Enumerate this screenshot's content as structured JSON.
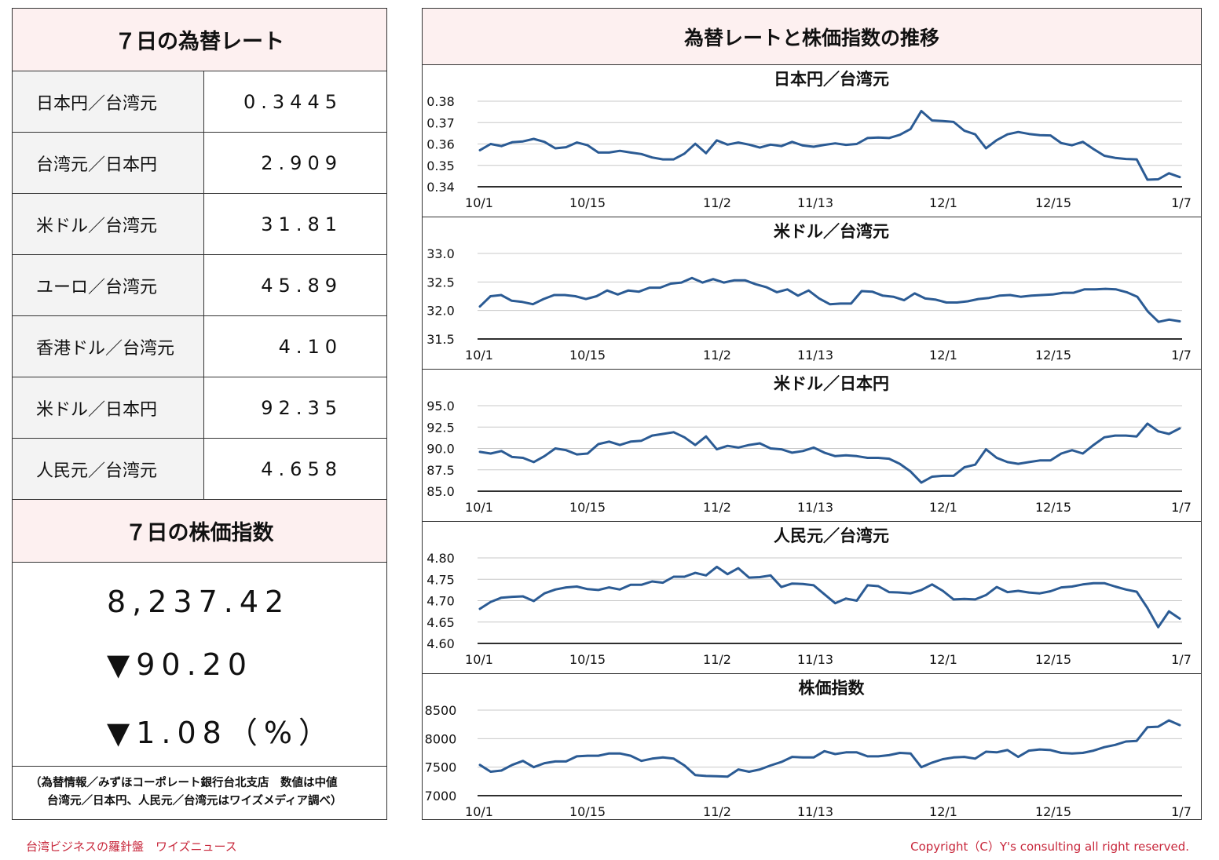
{
  "left": {
    "rates_title": "７日の為替レート",
    "rates": [
      {
        "label": "日本円／台湾元",
        "value": "0.3445"
      },
      {
        "label": "台湾元／日本円",
        "value": "2.909"
      },
      {
        "label": "米ドル／台湾元",
        "value": "31.81"
      },
      {
        "label": "ユーロ／台湾元",
        "value": "45.89"
      },
      {
        "label": "香港ドル／台湾元",
        "value": "4.10"
      },
      {
        "label": "米ドル／日本円",
        "value": "92.35"
      },
      {
        "label": "人民元／台湾元",
        "value": "4.658"
      }
    ],
    "stock_title": "７日の株価指数",
    "stock_value": "8,237.42",
    "stock_change": "▼90.20",
    "stock_change_pct": "▼1.08（%）",
    "source_line1": "（為替情報／みずほコーポレート銀行台北支店　数値は中値",
    "source_line2": "台湾元／日本円、人民元／台湾元はワイズメディア調べ）"
  },
  "right": {
    "title": "為替レートと株価指数の推移"
  },
  "footer": {
    "left": "台湾ビジネスの羅針盤　ワイズニュース",
    "right": "Copyright（C）Y's consulting all right reserved."
  },
  "colors": {
    "line": "#2b5b94",
    "header_bg": "#fdf0f0",
    "footer_text": "#c8283c"
  },
  "chart_data": [
    {
      "type": "line",
      "title": "日本円／台湾元",
      "x_ticks": [
        "10/1",
        "10/15",
        "11/2",
        "11/13",
        "12/1",
        "12/15",
        "1/7"
      ],
      "y_ticks": [
        "0.38",
        "0.37",
        "0.36",
        "0.35",
        "0.34"
      ],
      "ylim": [
        0.34,
        0.38
      ],
      "values": [
        0.3571,
        0.36,
        0.359,
        0.3608,
        0.3612,
        0.3624,
        0.361,
        0.358,
        0.3585,
        0.3607,
        0.3594,
        0.356,
        0.356,
        0.3568,
        0.356,
        0.3553,
        0.3537,
        0.3528,
        0.3528,
        0.3555,
        0.3601,
        0.3557,
        0.3617,
        0.3597,
        0.3607,
        0.3597,
        0.3583,
        0.3597,
        0.359,
        0.361,
        0.3593,
        0.3587,
        0.3596,
        0.3603,
        0.3596,
        0.36,
        0.3628,
        0.363,
        0.3628,
        0.3643,
        0.367,
        0.3754,
        0.371,
        0.3707,
        0.3703,
        0.3662,
        0.3645,
        0.358,
        0.3618,
        0.3645,
        0.3656,
        0.3647,
        0.3641,
        0.364,
        0.3604,
        0.3594,
        0.361,
        0.3576,
        0.3545,
        0.3535,
        0.353,
        0.3528,
        0.3433,
        0.3435,
        0.3463,
        0.3445
      ]
    },
    {
      "type": "line",
      "title": "米ドル／台湾元",
      "x_ticks": [
        "10/1",
        "10/15",
        "11/2",
        "11/13",
        "12/1",
        "12/15",
        "1/7"
      ],
      "y_ticks": [
        "33.0",
        "32.5",
        "32.0",
        "31.5"
      ],
      "ylim": [
        31.5,
        33.0
      ],
      "values": [
        32.07,
        32.25,
        32.27,
        32.17,
        32.15,
        32.11,
        32.2,
        32.27,
        32.27,
        32.25,
        32.2,
        32.25,
        32.35,
        32.28,
        32.35,
        32.33,
        32.4,
        32.4,
        32.47,
        32.49,
        32.57,
        32.49,
        32.55,
        32.49,
        32.53,
        32.53,
        32.46,
        32.41,
        32.32,
        32.37,
        32.26,
        32.35,
        32.21,
        32.11,
        32.12,
        32.12,
        32.34,
        32.33,
        32.26,
        32.24,
        32.18,
        32.3,
        32.21,
        32.19,
        32.14,
        32.14,
        32.16,
        32.2,
        32.22,
        32.26,
        32.27,
        32.24,
        32.26,
        32.27,
        32.28,
        32.31,
        32.31,
        32.37,
        32.37,
        32.38,
        32.37,
        32.32,
        32.24,
        31.98,
        31.8,
        31.84,
        31.81
      ]
    },
    {
      "type": "line",
      "title": "米ドル／日本円",
      "x_ticks": [
        "10/1",
        "10/15",
        "11/2",
        "11/13",
        "12/1",
        "12/15",
        "1/7"
      ],
      "y_ticks": [
        "95.0",
        "92.5",
        "90.0",
        "87.5",
        "85.0"
      ],
      "ylim": [
        85.0,
        95.0
      ],
      "values": [
        89.6,
        89.4,
        89.7,
        89.0,
        88.9,
        88.4,
        89.1,
        90.0,
        89.8,
        89.3,
        89.4,
        90.5,
        90.8,
        90.4,
        90.8,
        90.9,
        91.5,
        91.7,
        91.9,
        91.3,
        90.4,
        91.4,
        89.9,
        90.3,
        90.1,
        90.4,
        90.6,
        90.0,
        89.9,
        89.5,
        89.7,
        90.1,
        89.5,
        89.1,
        89.2,
        89.1,
        88.9,
        88.9,
        88.8,
        88.2,
        87.3,
        86.0,
        86.7,
        86.8,
        86.8,
        87.8,
        88.1,
        89.9,
        88.9,
        88.4,
        88.2,
        88.4,
        88.6,
        88.6,
        89.4,
        89.8,
        89.4,
        90.4,
        91.3,
        91.5,
        91.5,
        91.4,
        92.9,
        92.0,
        91.7,
        92.35
      ]
    },
    {
      "type": "line",
      "title": "人民元／台湾元",
      "x_ticks": [
        "10/1",
        "10/15",
        "11/2",
        "11/13",
        "12/1",
        "12/15",
        "1/7"
      ],
      "y_ticks": [
        "4.80",
        "4.75",
        "4.70",
        "4.65",
        "4.60"
      ],
      "ylim": [
        4.6,
        4.8
      ],
      "values": [
        4.681,
        4.697,
        4.707,
        4.709,
        4.71,
        4.699,
        4.717,
        4.726,
        4.731,
        4.733,
        4.727,
        4.725,
        4.731,
        4.726,
        4.737,
        4.737,
        4.745,
        4.742,
        4.756,
        4.756,
        4.765,
        4.759,
        4.779,
        4.762,
        4.776,
        4.754,
        4.755,
        4.759,
        4.732,
        4.74,
        4.739,
        4.736,
        4.715,
        4.694,
        4.705,
        4.7,
        4.736,
        4.734,
        4.72,
        4.719,
        4.717,
        4.725,
        4.738,
        4.723,
        4.703,
        4.704,
        4.703,
        4.713,
        4.732,
        4.72,
        4.723,
        4.719,
        4.717,
        4.722,
        4.731,
        4.733,
        4.738,
        4.741,
        4.741,
        4.733,
        4.726,
        4.721,
        4.683,
        4.638,
        4.675,
        4.658
      ]
    },
    {
      "type": "line",
      "title": "株価指数",
      "x_ticks": [
        "10/1",
        "10/15",
        "11/2",
        "11/13",
        "12/1",
        "12/15",
        "1/7"
      ],
      "y_ticks": [
        "8500",
        "8000",
        "7500",
        "7000"
      ],
      "ylim": [
        7000,
        8500
      ],
      "values": [
        7540,
        7420,
        7440,
        7540,
        7610,
        7500,
        7570,
        7600,
        7600,
        7690,
        7700,
        7700,
        7740,
        7740,
        7700,
        7610,
        7650,
        7670,
        7650,
        7530,
        7360,
        7345,
        7340,
        7335,
        7460,
        7420,
        7460,
        7530,
        7590,
        7680,
        7670,
        7670,
        7780,
        7730,
        7760,
        7760,
        7690,
        7690,
        7710,
        7750,
        7740,
        7500,
        7580,
        7640,
        7670,
        7680,
        7650,
        7770,
        7760,
        7800,
        7680,
        7790,
        7810,
        7800,
        7750,
        7740,
        7750,
        7790,
        7850,
        7890,
        7950,
        7960,
        8200,
        8210,
        8320,
        8237.42
      ]
    }
  ]
}
